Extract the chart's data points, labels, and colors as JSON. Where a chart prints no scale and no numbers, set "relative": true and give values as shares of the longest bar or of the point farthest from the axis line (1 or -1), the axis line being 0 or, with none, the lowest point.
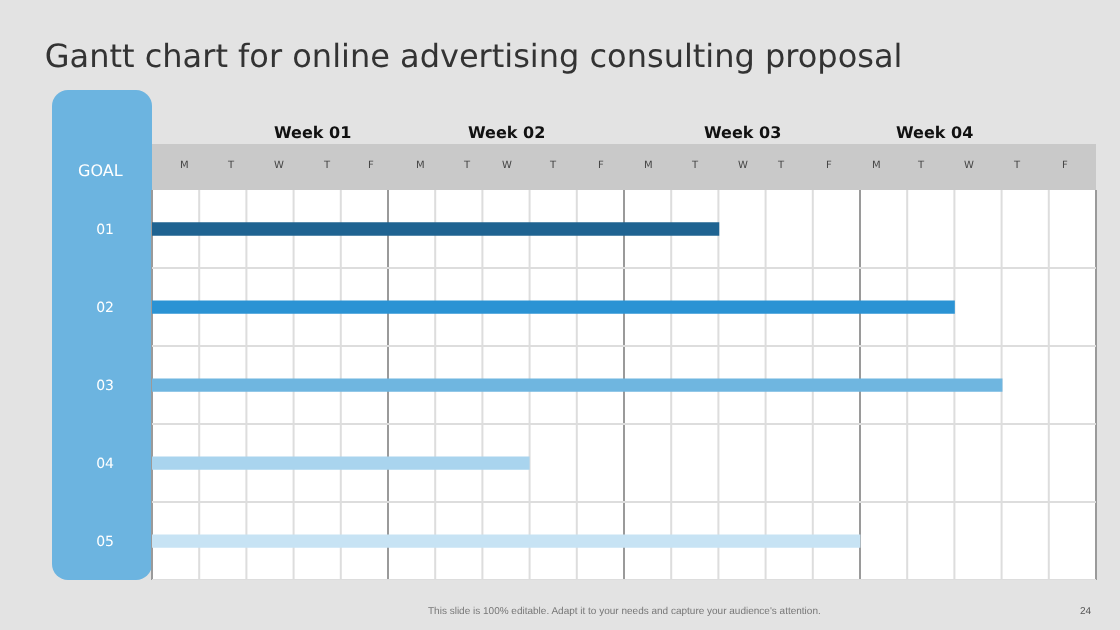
{
  "chart_data": {
    "type": "bar",
    "orientation": "horizontal",
    "relative": true,
    "title": "Gantt chart for online advertising consulting proposal",
    "ylabel": "GOAL",
    "categories": [
      "01",
      "02",
      "03",
      "04",
      "05"
    ],
    "values": [
      0.667,
      0.944,
      1,
      0.444,
      0.833
    ],
    "colors": [
      "#1f6391",
      "#2b93d4",
      "#6fb6e0",
      "#a9d4ee",
      "#c7e3f4"
    ],
    "grid": true,
    "annotations": [
      "Week 01",
      "Week 02",
      "Week 03",
      "Week 04",
      "M",
      "T",
      "W",
      "T",
      "F",
      "M",
      "T",
      "W",
      "T",
      "F",
      "M",
      "T",
      "W",
      "T",
      "F",
      "M",
      "T",
      "W",
      "T",
      "F",
      "This slide is 100% editable. Adapt it to your needs and capture your audience's attention.",
      "24"
    ]
  }
}
